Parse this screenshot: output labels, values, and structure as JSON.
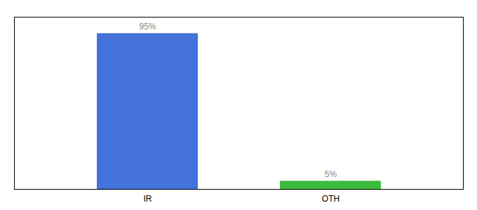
{
  "chart_data": {
    "type": "bar",
    "categories": [
      "IR",
      "OTH"
    ],
    "values": [
      95,
      5
    ],
    "colors": [
      "#4472db",
      "#3dbb3d"
    ],
    "data_labels": true,
    "value_labels": [
      "95%",
      "5%"
    ],
    "ylim": [
      0,
      105
    ],
    "grid": false,
    "tick_labels": "x"
  }
}
